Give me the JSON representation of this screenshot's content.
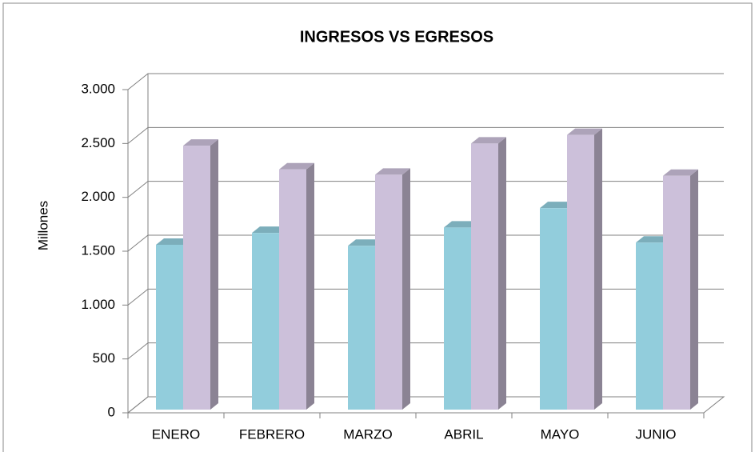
{
  "chart_data": {
    "type": "bar3d",
    "title": "INGRESOS VS EGRESOS",
    "y_label": "Millones",
    "categories": [
      "ENERO",
      "FEBRERO",
      "MARZO",
      "ABRIL",
      "MAYO",
      "JUNIO"
    ],
    "series": [
      {
        "color": "#92cddc",
        "values": [
          1530,
          1640,
          1520,
          1690,
          1870,
          1550
        ]
      },
      {
        "color": "#ccc0da",
        "values": [
          2450,
          2230,
          2180,
          2470,
          2550,
          2170
        ]
      }
    ],
    "ylim": [
      0,
      3000
    ],
    "yticks": [
      0,
      500,
      {
        "value": 1000,
        "label": "1.000"
      },
      {
        "value": 1500,
        "label": "1.500"
      },
      {
        "value": 2000,
        "label": "2.000"
      },
      {
        "value": 2500,
        "label": "2.500"
      },
      {
        "value": 3000,
        "label": "3.000"
      }
    ],
    "grid": true
  }
}
